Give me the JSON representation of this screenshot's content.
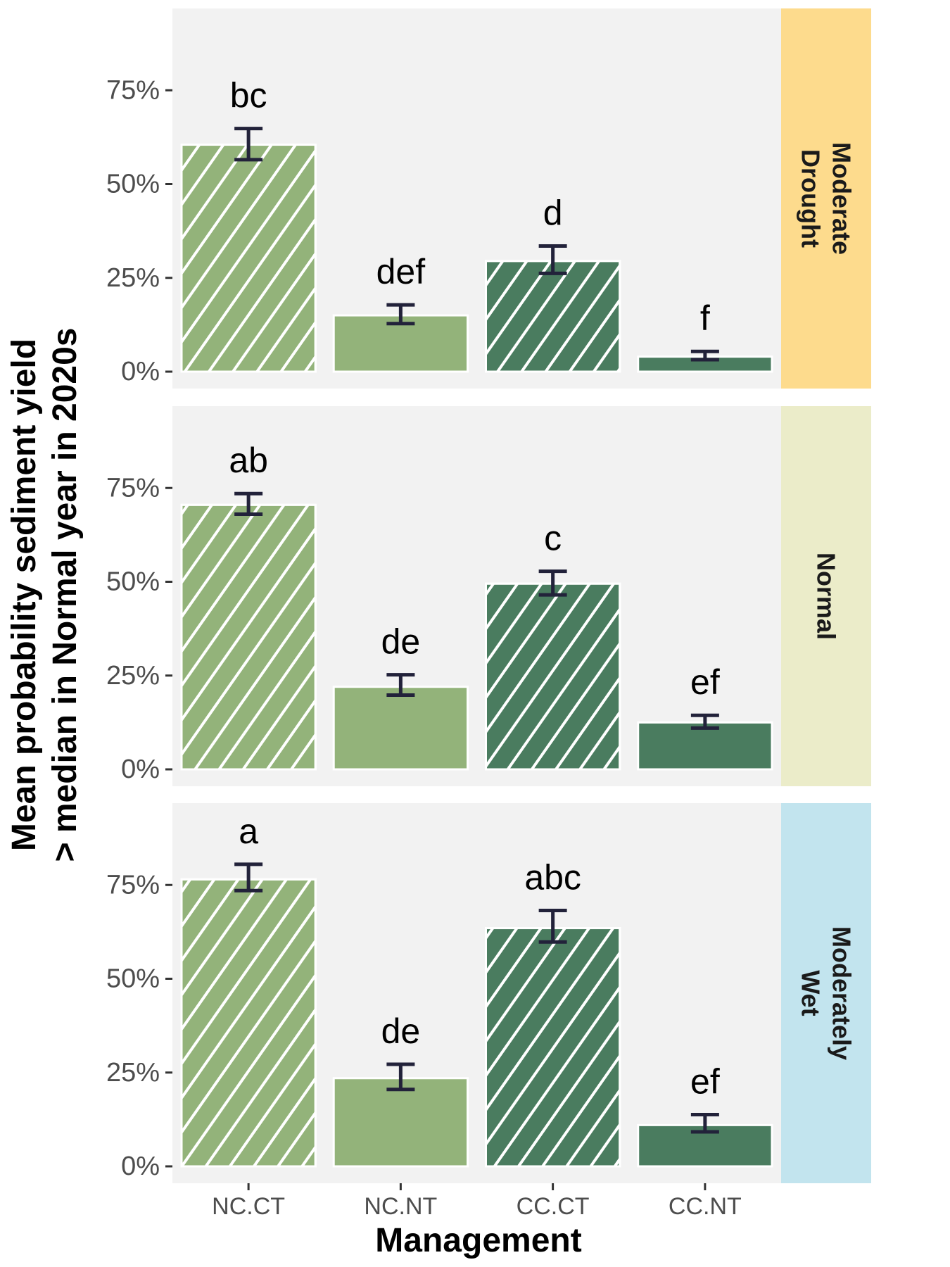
{
  "chart_data": {
    "type": "bar",
    "xlabel": "Management",
    "ylabel_lines": [
      "Mean probability sediment yield",
      "> median in Normal year in 2020s"
    ],
    "categories": [
      "NC.CT",
      "NC.NT",
      "CC.CT",
      "CC.NT"
    ],
    "y_ticks": [
      0,
      25,
      50,
      75
    ],
    "y_tick_labels": [
      "0%",
      "25%",
      "50%",
      "75%"
    ],
    "ylim": [
      0,
      95
    ],
    "grid": false,
    "bar_styles": [
      {
        "fill": "#93b37a",
        "hatched": true
      },
      {
        "fill": "#93b37a",
        "hatched": false
      },
      {
        "fill": "#4a7c5f",
        "hatched": true
      },
      {
        "fill": "#4a7c5f",
        "hatched": false
      }
    ],
    "colors": {
      "panel_bg": "#f2f2f2",
      "bar_outline": "#ffffff",
      "hatch": "#ffffff",
      "error_bar": "#22223a"
    },
    "panels": [
      {
        "strip_lines": [
          "Moderate",
          "Drought"
        ],
        "strip_color": "#fddb8d",
        "values": [
          60.5,
          15.0,
          29.5,
          4.0
        ],
        "err_low": [
          56.5,
          12.8,
          26.2,
          3.2
        ],
        "err_high": [
          64.8,
          17.8,
          33.5,
          5.4
        ],
        "letters": [
          "bc",
          "def",
          "d",
          "f"
        ]
      },
      {
        "strip_lines": [
          "Normal"
        ],
        "strip_color": "#ebecc9",
        "values": [
          70.5,
          22.0,
          49.5,
          12.5
        ],
        "err_low": [
          68.0,
          19.8,
          46.5,
          11.0
        ],
        "err_high": [
          73.5,
          25.2,
          52.8,
          14.4
        ],
        "letters": [
          "ab",
          "de",
          "c",
          "ef"
        ]
      },
      {
        "strip_lines": [
          "Moderately",
          "Wet"
        ],
        "strip_color": "#c2e4ee",
        "values": [
          76.5,
          23.5,
          63.5,
          11.0
        ],
        "err_low": [
          73.5,
          20.5,
          59.8,
          9.2
        ],
        "err_high": [
          80.5,
          27.2,
          68.2,
          13.8
        ],
        "letters": [
          "a",
          "de",
          "abc",
          "ef"
        ]
      }
    ]
  }
}
